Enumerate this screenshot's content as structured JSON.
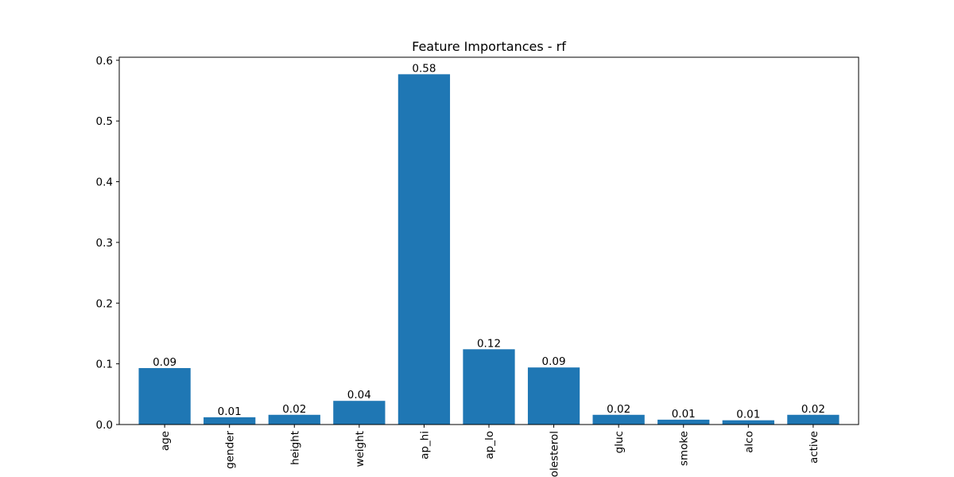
{
  "chart_data": {
    "type": "bar",
    "title": "Feature Importances - rf",
    "xlabel": "",
    "ylabel": "",
    "categories": [
      "age",
      "gender",
      "height",
      "weight",
      "ap_hi",
      "ap_lo",
      "cholesterol",
      "gluc",
      "smoke",
      "alco",
      "active"
    ],
    "values": [
      0.093,
      0.012,
      0.016,
      0.039,
      0.577,
      0.124,
      0.094,
      0.016,
      0.008,
      0.007,
      0.016
    ],
    "data_labels": [
      "0.09",
      "0.01",
      "0.02",
      "0.04",
      "0.58",
      "0.12",
      "0.09",
      "0.02",
      "0.01",
      "0.01",
      "0.02"
    ],
    "ylim": [
      0,
      0.605
    ],
    "yticks": [
      0,
      0.1,
      0.2,
      0.3,
      0.4,
      0.5,
      0.6
    ],
    "ytick_labels": [
      "0.0",
      "0.1",
      "0.2",
      "0.3",
      "0.4",
      "0.5",
      "0.6"
    ],
    "grid": false,
    "legend": "none",
    "bar_color": "#1f77b4"
  }
}
